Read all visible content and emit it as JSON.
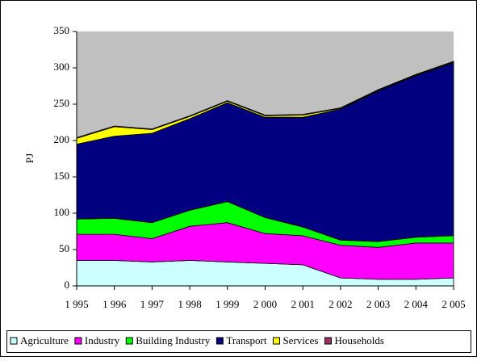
{
  "chart_data": {
    "type": "stacked-area",
    "y_label": "PJ",
    "categories": [
      "1 995",
      "1 996",
      "1 997",
      "1 998",
      "1 999",
      "2 000",
      "2 001",
      "2 002",
      "2 003",
      "2 004",
      "2 005"
    ],
    "series": [
      {
        "name": "Agriculture",
        "color": "#ccffff",
        "values": [
          35,
          35,
          33,
          35,
          33,
          31,
          29,
          11,
          9,
          9,
          11
        ]
      },
      {
        "name": "Industry",
        "color": "#ff00ff",
        "values": [
          36,
          36,
          32,
          47,
          54,
          41,
          40,
          45,
          44,
          50,
          48
        ]
      },
      {
        "name": "Building Industry",
        "color": "#00ff00",
        "values": [
          21,
          22,
          22,
          22,
          29,
          22,
          12,
          7,
          8,
          8,
          10
        ]
      },
      {
        "name": "Transport",
        "color": "#000080",
        "values": [
          103,
          113,
          123,
          126,
          136,
          138,
          151,
          180,
          207,
          222,
          238
        ]
      },
      {
        "name": "Services",
        "color": "#ffff00",
        "values": [
          8,
          13,
          5,
          3,
          2,
          2,
          3,
          1,
          1,
          1,
          1
        ]
      },
      {
        "name": "Households",
        "color": "#993366",
        "values": [
          1,
          1,
          1,
          1,
          1,
          1,
          1,
          1,
          1,
          1,
          1
        ]
      }
    ],
    "ylim": [
      0,
      350
    ],
    "yticks": [
      0,
      50,
      100,
      150,
      200,
      250,
      300,
      350
    ],
    "plot_background": "#c0c0c0"
  }
}
